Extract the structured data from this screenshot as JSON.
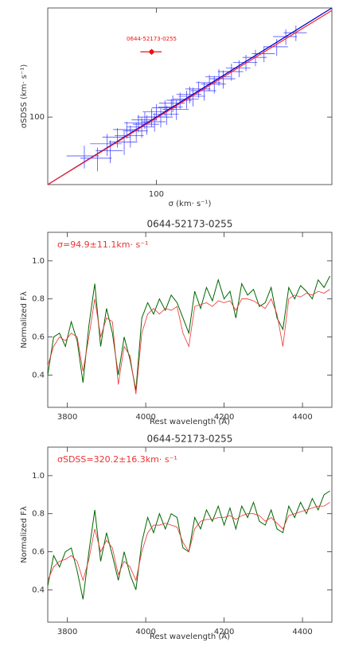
{
  "chart_data": [
    {
      "type": "scatter",
      "log": true,
      "xlabel": "σ (km· s⁻¹)",
      "ylabel": "σSDSS (km· s⁻¹)",
      "xlim": [
        30,
        700
      ],
      "ylim": [
        30,
        700
      ],
      "xticks": [
        100
      ],
      "yticks": [
        100
      ],
      "color": "#3030ff",
      "x": [
        45,
        52,
        58,
        60,
        65,
        70,
        72,
        75,
        80,
        82,
        85,
        88,
        90,
        95,
        98,
        100,
        105,
        110,
        112,
        118,
        120,
        125,
        130,
        140,
        145,
        150,
        160,
        170,
        180,
        190,
        200,
        210,
        230,
        250,
        270,
        300,
        330,
        380,
        420,
        470
      ],
      "values": [
        50,
        48,
        62,
        55,
        70,
        64,
        80,
        72,
        78,
        90,
        84,
        95,
        88,
        100,
        92,
        110,
        100,
        118,
        105,
        120,
        128,
        115,
        135,
        138,
        150,
        145,
        165,
        160,
        185,
        180,
        205,
        198,
        225,
        240,
        265,
        290,
        310,
        350,
        420,
        450
      ],
      "xerr": [
        8,
        9,
        10,
        9,
        10,
        11,
        10,
        12,
        11,
        12,
        13,
        12,
        13,
        14,
        13,
        14,
        15,
        15,
        16,
        16,
        17,
        18,
        18,
        20,
        20,
        22,
        22,
        24,
        25,
        26,
        28,
        30,
        32,
        34,
        36,
        40,
        42,
        50,
        55,
        60
      ],
      "yerr": [
        10,
        10,
        12,
        11,
        12,
        13,
        12,
        14,
        13,
        14,
        15,
        14,
        15,
        16,
        15,
        16,
        17,
        17,
        18,
        18,
        19,
        20,
        20,
        22,
        22,
        24,
        24,
        26,
        27,
        28,
        30,
        32,
        34,
        36,
        38,
        42,
        44,
        52,
        58,
        62
      ],
      "lines": [
        {
          "color": "#0000cc",
          "x": [
            30,
            700
          ],
          "values": [
            30,
            700
          ]
        },
        {
          "color": "#ff2020",
          "x": [
            30,
            700
          ],
          "values": [
            30,
            670
          ]
        }
      ],
      "highlight": {
        "label": "0644-52173-0255",
        "color": "#ee1111",
        "x": 94.9,
        "y": 320.2,
        "xerr": 11.1,
        "yerr": 16.3
      }
    },
    {
      "type": "line",
      "title": "0644-52173-0255",
      "annotation": "σ=94.9±11.1km· s⁻¹",
      "xlabel": "Rest wavelength (Å)",
      "ylabel": "Normalized Fλ",
      "xlim": [
        3750,
        4475
      ],
      "ylim": [
        0.23,
        1.15
      ],
      "xticks": [
        3800,
        4000,
        4200,
        4400
      ],
      "yticks": [
        0.4,
        0.6,
        0.8,
        {
          "value": 1,
          "label": "1.0"
        }
      ],
      "x": [
        3750,
        3765,
        3780,
        3795,
        3810,
        3825,
        3840,
        3855,
        3870,
        3885,
        3900,
        3915,
        3930,
        3945,
        3960,
        3975,
        3990,
        4005,
        4020,
        4035,
        4050,
        4065,
        4080,
        4095,
        4110,
        4125,
        4140,
        4155,
        4170,
        4185,
        4200,
        4215,
        4230,
        4245,
        4260,
        4275,
        4290,
        4305,
        4320,
        4335,
        4350,
        4365,
        4380,
        4395,
        4410,
        4425,
        4440,
        4455,
        4470
      ],
      "series": [
        {
          "color": "#006600",
          "values": [
            0.4,
            0.6,
            0.62,
            0.55,
            0.68,
            0.58,
            0.36,
            0.66,
            0.88,
            0.55,
            0.75,
            0.62,
            0.4,
            0.6,
            0.48,
            0.32,
            0.7,
            0.78,
            0.72,
            0.8,
            0.74,
            0.82,
            0.78,
            0.7,
            0.62,
            0.84,
            0.75,
            0.86,
            0.79,
            0.9,
            0.8,
            0.84,
            0.7,
            0.88,
            0.82,
            0.85,
            0.76,
            0.78,
            0.86,
            0.7,
            0.64,
            0.86,
            0.8,
            0.87,
            0.84,
            0.8,
            0.9,
            0.86,
            0.92
          ]
        },
        {
          "color": "#ee3333",
          "values": [
            0.45,
            0.55,
            0.6,
            0.58,
            0.62,
            0.6,
            0.42,
            0.6,
            0.8,
            0.6,
            0.7,
            0.68,
            0.35,
            0.55,
            0.5,
            0.3,
            0.62,
            0.72,
            0.75,
            0.72,
            0.75,
            0.74,
            0.76,
            0.62,
            0.55,
            0.76,
            0.77,
            0.78,
            0.76,
            0.79,
            0.78,
            0.79,
            0.74,
            0.8,
            0.8,
            0.79,
            0.77,
            0.75,
            0.8,
            0.72,
            0.55,
            0.8,
            0.82,
            0.81,
            0.83,
            0.82,
            0.84,
            0.83,
            0.85
          ]
        }
      ]
    },
    {
      "type": "line",
      "title": "0644-52173-0255",
      "annotation": "σSDSS=320.2±16.3km· s⁻¹",
      "xlabel": "Rest wavelength (Å)",
      "ylabel": "Normalized Fλ",
      "xlim": [
        3750,
        4475
      ],
      "ylim": [
        0.23,
        1.15
      ],
      "xticks": [
        3800,
        4000,
        4200,
        4400
      ],
      "yticks": [
        0.4,
        0.6,
        0.8,
        {
          "value": 1,
          "label": "1.0"
        }
      ],
      "x": [
        3750,
        3765,
        3780,
        3795,
        3810,
        3825,
        3840,
        3855,
        3870,
        3885,
        3900,
        3915,
        3930,
        3945,
        3960,
        3975,
        3990,
        4005,
        4020,
        4035,
        4050,
        4065,
        4080,
        4095,
        4110,
        4125,
        4140,
        4155,
        4170,
        4185,
        4200,
        4215,
        4230,
        4245,
        4260,
        4275,
        4290,
        4305,
        4320,
        4335,
        4350,
        4365,
        4380,
        4395,
        4410,
        4425,
        4440,
        4455,
        4470
      ],
      "series": [
        {
          "color": "#006600",
          "values": [
            0.42,
            0.58,
            0.52,
            0.6,
            0.62,
            0.5,
            0.35,
            0.6,
            0.82,
            0.55,
            0.7,
            0.58,
            0.45,
            0.6,
            0.48,
            0.4,
            0.65,
            0.78,
            0.7,
            0.8,
            0.72,
            0.8,
            0.78,
            0.62,
            0.6,
            0.78,
            0.72,
            0.82,
            0.76,
            0.84,
            0.74,
            0.83,
            0.72,
            0.84,
            0.78,
            0.86,
            0.76,
            0.74,
            0.82,
            0.72,
            0.7,
            0.84,
            0.78,
            0.86,
            0.8,
            0.88,
            0.82,
            0.9,
            0.92
          ]
        },
        {
          "color": "#ee3333",
          "values": [
            0.45,
            0.52,
            0.55,
            0.56,
            0.58,
            0.55,
            0.45,
            0.56,
            0.72,
            0.6,
            0.66,
            0.62,
            0.48,
            0.55,
            0.52,
            0.45,
            0.6,
            0.7,
            0.74,
            0.74,
            0.75,
            0.74,
            0.73,
            0.65,
            0.6,
            0.72,
            0.76,
            0.77,
            0.77,
            0.78,
            0.78,
            0.79,
            0.77,
            0.79,
            0.8,
            0.8,
            0.79,
            0.76,
            0.78,
            0.75,
            0.72,
            0.79,
            0.8,
            0.81,
            0.82,
            0.83,
            0.84,
            0.84,
            0.86
          ]
        }
      ]
    }
  ]
}
